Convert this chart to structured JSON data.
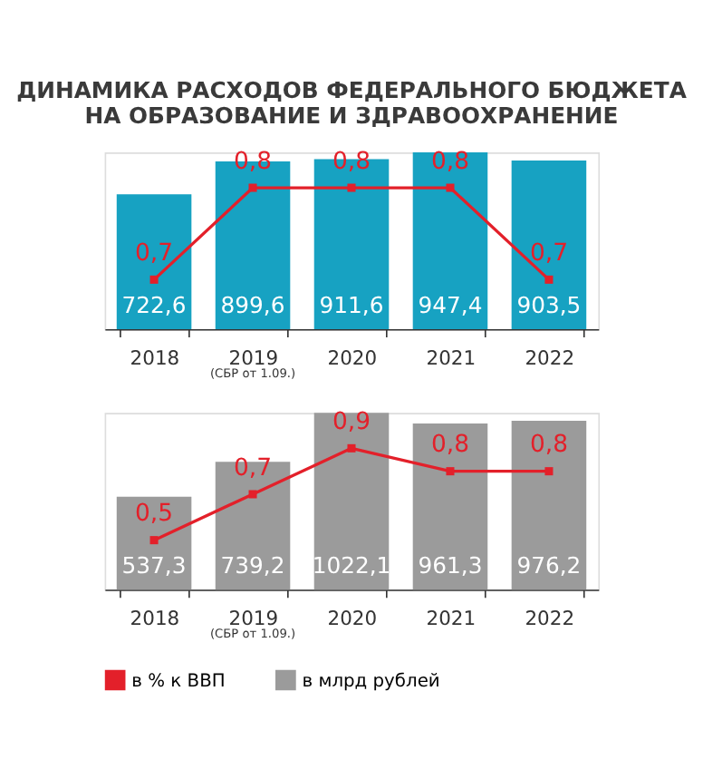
{
  "chart_data": [
    {
      "type": "bar",
      "title": "ДИНАМИКА РАСХОДОВ ФЕДЕРАЛЬНОГО БЮДЖЕТА НА ОБРАЗОВАНИЕ И ЗДРАВООХРАНЕНИЕ",
      "categories": [
        "2018",
        "2019",
        "2020",
        "2021",
        "2022"
      ],
      "series": [
        {
          "type": "line",
          "axis": "y2",
          "color": "#e3202a",
          "line_style": "solid",
          "values": [
            0.7,
            0.8,
            0.8,
            0.8,
            0.7
          ],
          "value_labels": [
            "0,7",
            "0,8",
            "0,8",
            "0,8",
            "0,7"
          ]
        },
        {
          "color": "#17a2c2",
          "values": [
            722.6,
            899.6,
            911.6,
            947.4,
            903.5
          ],
          "value_labels": [
            "722,6",
            "899,6",
            "911,6",
            "947,4",
            "903,5"
          ]
        }
      ],
      "tick_labels": "x",
      "marker": "square",
      "legend": false,
      "annotations": [
        "(СБР от 1.09.)"
      ]
    },
    {
      "type": "bar",
      "categories": [
        "2018",
        "2019",
        "2020",
        "2021",
        "2022"
      ],
      "series": [
        {
          "name": "в % к ВВП",
          "type": "line",
          "axis": "y2",
          "color": "#e3202a",
          "line_style": "solid",
          "values": [
            0.5,
            0.7,
            0.9,
            0.8,
            0.8
          ],
          "value_labels": [
            "0,5",
            "0,7",
            "0,9",
            "0,8",
            "0,8"
          ]
        },
        {
          "name": "в млрд рублей",
          "color": "#9b9b9b",
          "values": [
            537.3,
            739.2,
            1022.1,
            961.3,
            976.2
          ],
          "value_labels": [
            "537,3",
            "739,2",
            "1022,1",
            "961,3",
            "976,2"
          ]
        }
      ],
      "tick_labels": "x",
      "marker": "square",
      "legend": "bottom",
      "annotations": [
        "(СБР от 1.09.)"
      ]
    }
  ]
}
